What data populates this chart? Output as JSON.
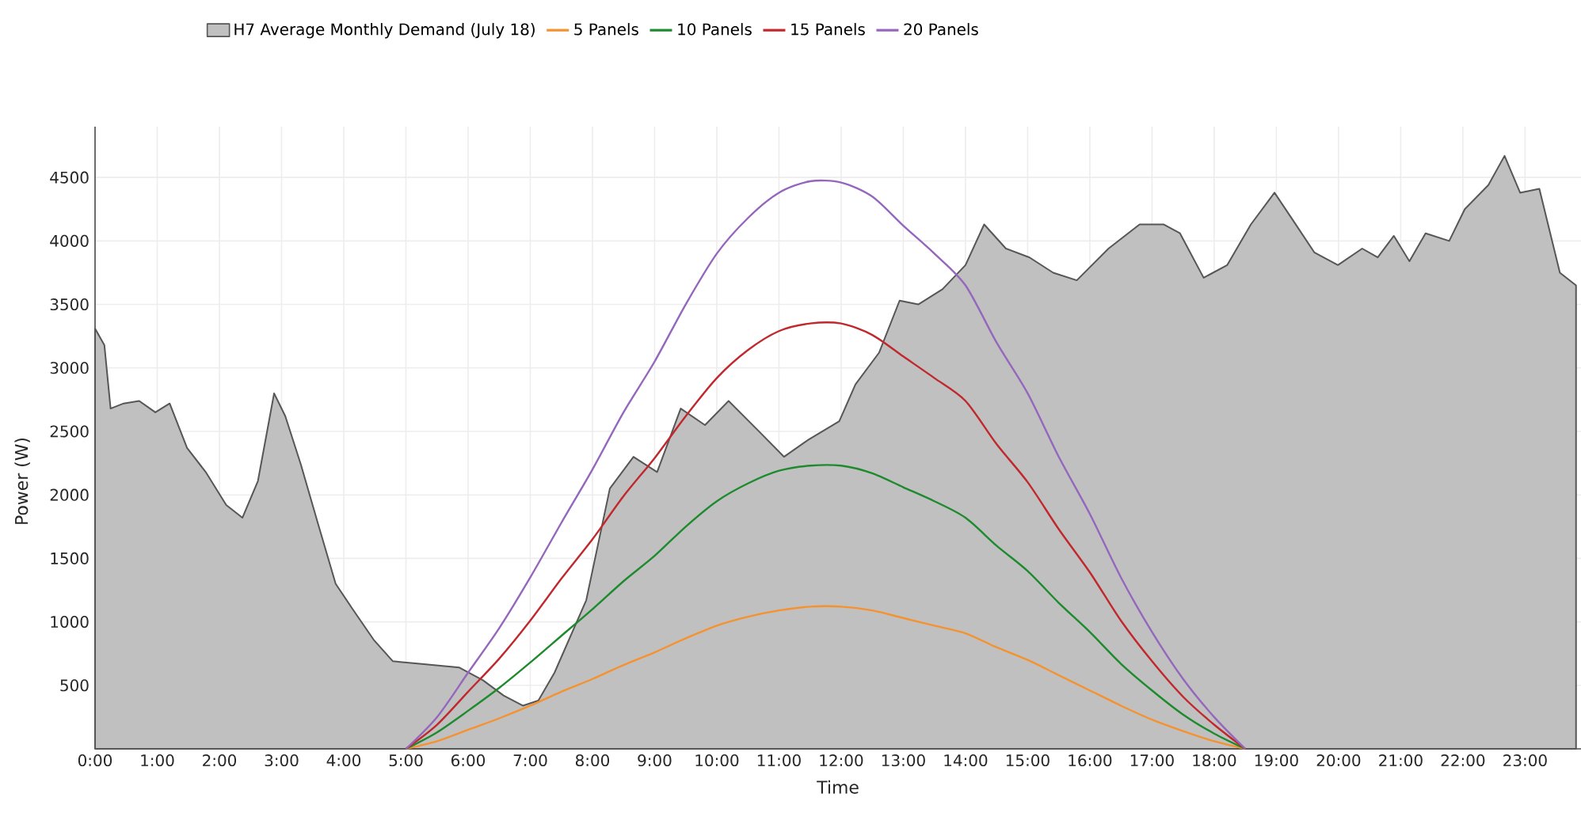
{
  "chart_data": {
    "type": "line",
    "xlabel": "Time",
    "ylabel": "Power (W)",
    "legend": "top",
    "grid": true,
    "xlim": [
      0,
      23.9
    ],
    "ylim": [
      0,
      4900
    ],
    "xticks": [
      {
        "value": 0,
        "label": "0:00"
      },
      {
        "value": 1,
        "label": "1:00"
      },
      {
        "value": 2,
        "label": "2:00"
      },
      {
        "value": 3,
        "label": "3:00"
      },
      {
        "value": 4,
        "label": "4:00"
      },
      {
        "value": 5,
        "label": "5:00"
      },
      {
        "value": 6,
        "label": "6:00"
      },
      {
        "value": 7,
        "label": "7:00"
      },
      {
        "value": 8,
        "label": "8:00"
      },
      {
        "value": 9,
        "label": "9:00"
      },
      {
        "value": 10,
        "label": "10:00"
      },
      {
        "value": 11,
        "label": "11:00"
      },
      {
        "value": 12,
        "label": "12:00"
      },
      {
        "value": 13,
        "label": "13:00"
      },
      {
        "value": 14,
        "label": "14:00"
      },
      {
        "value": 15,
        "label": "15:00"
      },
      {
        "value": 16,
        "label": "16:00"
      },
      {
        "value": 17,
        "label": "17:00"
      },
      {
        "value": 18,
        "label": "18:00"
      },
      {
        "value": 19,
        "label": "19:00"
      },
      {
        "value": 20,
        "label": "20:00"
      },
      {
        "value": 21,
        "label": "21:00"
      },
      {
        "value": 22,
        "label": "22:00"
      },
      {
        "value": 23,
        "label": "23:00"
      }
    ],
    "yticks": [
      500,
      1000,
      1500,
      2000,
      2500,
      3000,
      3500,
      4000,
      4500
    ],
    "series": [
      {
        "name": "H7 Average Monthly Demand (July 18)",
        "type": "area",
        "color": "#c0c0c0",
        "x": [
          0,
          0.15,
          0.25,
          0.46,
          0.71,
          0.97,
          1.2,
          1.48,
          1.78,
          2.11,
          2.37,
          2.62,
          2.88,
          3.06,
          3.31,
          3.57,
          3.87,
          4.13,
          4.48,
          4.79,
          5.22,
          5.86,
          6.24,
          6.57,
          6.88,
          7.13,
          7.39,
          7.9,
          8.28,
          8.66,
          9.04,
          9.42,
          9.81,
          10.19,
          10.7,
          11.08,
          11.46,
          11.97,
          12.23,
          12.61,
          12.94,
          13.24,
          13.63,
          14.0,
          14.3,
          14.65,
          15.03,
          15.41,
          15.79,
          16.3,
          16.8,
          17.19,
          17.45,
          17.83,
          18.21,
          18.59,
          18.97,
          19.23,
          19.61,
          19.99,
          20.38,
          20.63,
          20.89,
          21.14,
          21.4,
          21.78,
          22.03,
          22.41,
          22.67,
          22.92,
          23.23,
          23.56,
          23.82
        ],
        "values": [
          3310,
          3180,
          2680,
          2720,
          2740,
          2650,
          2720,
          2370,
          2180,
          1920,
          1820,
          2110,
          2800,
          2620,
          2240,
          1800,
          1300,
          1110,
          860,
          690,
          670,
          640,
          540,
          420,
          340,
          380,
          600,
          1170,
          2050,
          2300,
          2180,
          2680,
          2550,
          2740,
          2490,
          2300,
          2430,
          2580,
          2870,
          3120,
          3530,
          3500,
          3620,
          3810,
          4130,
          3940,
          3870,
          3750,
          3690,
          3940,
          4130,
          4130,
          4060,
          3710,
          3810,
          4130,
          4380,
          4190,
          3910,
          3810,
          3940,
          3870,
          4040,
          3840,
          4060,
          4000,
          4250,
          4440,
          4670,
          4380,
          4410,
          3750,
          3650
        ]
      },
      {
        "name": "5 Panels",
        "color": "#f5922f",
        "x": [
          5,
          5.5,
          6,
          6.5,
          7,
          7.5,
          8,
          8.5,
          9,
          9.5,
          10,
          10.5,
          11,
          11.5,
          12,
          12.5,
          13,
          13.5,
          14,
          14.5,
          15,
          15.5,
          16,
          16.5,
          17,
          17.5,
          18,
          18.5
        ],
        "values": [
          0,
          60,
          150,
          240,
          340,
          450,
          550,
          660,
          760,
          870,
          970,
          1040,
          1090,
          1120,
          1120,
          1090,
          1030,
          970,
          910,
          800,
          700,
          580,
          460,
          340,
          230,
          140,
          60,
          0
        ]
      },
      {
        "name": "10 Panels",
        "color": "#1e8a2e",
        "x": [
          5,
          5.5,
          6,
          6.5,
          7,
          7.5,
          8,
          8.5,
          9,
          9.5,
          10,
          10.5,
          11,
          11.5,
          12,
          12.5,
          13,
          13.5,
          14,
          14.5,
          15,
          15.5,
          16,
          16.5,
          17,
          17.5,
          18,
          18.5
        ],
        "values": [
          0,
          130,
          300,
          480,
          680,
          890,
          1100,
          1320,
          1520,
          1750,
          1950,
          2090,
          2190,
          2230,
          2230,
          2170,
          2060,
          1950,
          1820,
          1600,
          1400,
          1150,
          920,
          670,
          460,
          270,
          120,
          0
        ]
      },
      {
        "name": "15 Panels",
        "color": "#c0282d",
        "x": [
          5,
          5.5,
          6,
          6.5,
          7,
          7.5,
          8,
          8.5,
          9,
          9.5,
          10,
          10.5,
          11,
          11.5,
          12,
          12.5,
          13,
          13.5,
          14,
          14.5,
          15,
          15.5,
          16,
          16.5,
          17,
          17.5,
          18,
          18.5
        ],
        "values": [
          0,
          190,
          450,
          710,
          1010,
          1340,
          1650,
          1990,
          2290,
          2620,
          2920,
          3140,
          3290,
          3350,
          3350,
          3260,
          3090,
          2920,
          2740,
          2400,
          2100,
          1730,
          1390,
          1010,
          690,
          410,
          190,
          0
        ]
      },
      {
        "name": "20 Panels",
        "color": "#9467bd",
        "x": [
          5,
          5.5,
          6,
          6.5,
          7,
          7.5,
          8,
          8.5,
          9,
          9.5,
          10,
          10.5,
          11,
          11.5,
          12,
          12.5,
          13,
          13.5,
          14,
          14.5,
          15,
          15.5,
          16,
          16.5,
          17,
          17.5,
          18,
          18.5
        ],
        "values": [
          0,
          250,
          600,
          950,
          1350,
          1780,
          2200,
          2650,
          3050,
          3500,
          3900,
          4180,
          4380,
          4470,
          4460,
          4350,
          4120,
          3900,
          3650,
          3200,
          2800,
          2300,
          1850,
          1350,
          920,
          550,
          250,
          0
        ]
      }
    ]
  }
}
